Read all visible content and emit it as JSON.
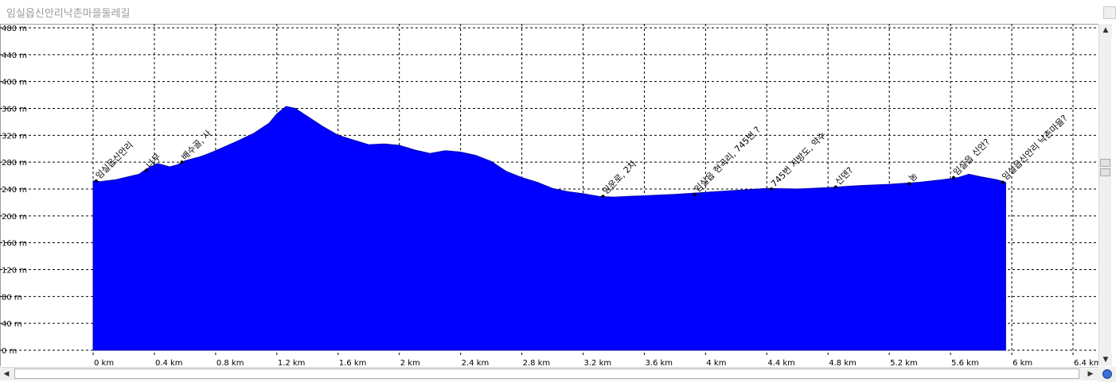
{
  "window": {
    "title": "임실읍신안리낙촌마을둘레길"
  },
  "colors": {
    "profile_fill": "#0000FF",
    "profile_stroke": "#0000B0",
    "grid": "#000000",
    "background": "#FFFFFF"
  },
  "scrollbars": {
    "up_arrow_icon": "arrow-up-icon",
    "down_arrow_icon": "arrow-down-icon",
    "left_arrow_icon": "arrow-left-icon",
    "right_arrow_icon": "arrow-right-icon"
  },
  "chart_data": {
    "type": "area",
    "title": "",
    "xlabel": "",
    "ylabel": "",
    "xlim": [
      0,
      6.4
    ],
    "ylim": [
      0,
      480
    ],
    "grid": true,
    "x_ticks": [
      "0 km",
      "0.4 km",
      "0.8 km",
      "1.2 km",
      "1.6 km",
      "2 km",
      "2.4 km",
      "2.8 km",
      "3.2 km",
      "3.6 km",
      "4 km",
      "4.4 km",
      "4.8 km",
      "5.2 km",
      "5.6 km",
      "6 km",
      "6.4 km"
    ],
    "y_ticks": [
      "0 m",
      "40 m",
      "80 m",
      "120 m",
      "160 m",
      "200 m",
      "240 m",
      "280 m",
      "320 m",
      "360 m",
      "400 m",
      "440 m",
      "480 m"
    ],
    "series": [
      {
        "x": [
          0,
          0.05,
          0.15,
          0.3,
          0.35,
          0.42,
          0.5,
          0.55,
          0.6,
          0.7,
          0.78,
          0.85,
          0.95,
          1.05,
          1.15,
          1.2,
          1.26,
          1.32,
          1.4,
          1.5,
          1.6,
          1.7,
          1.8,
          1.9,
          2.0,
          2.1,
          2.2,
          2.3,
          2.4,
          2.5,
          2.6,
          2.7,
          2.8,
          2.9,
          3.0,
          3.1,
          3.2,
          3.3,
          3.4,
          3.5,
          3.6,
          3.8,
          4.0,
          4.2,
          4.4,
          4.6,
          4.8,
          5.0,
          5.2,
          5.4,
          5.55,
          5.65,
          5.72,
          5.8,
          5.9,
          5.96
        ],
        "y": [
          252,
          251,
          254,
          262,
          270,
          278,
          273,
          276,
          282,
          288,
          295,
          302,
          312,
          323,
          338,
          352,
          363,
          360,
          348,
          333,
          320,
          313,
          306,
          307,
          305,
          298,
          293,
          297,
          295,
          290,
          281,
          266,
          257,
          250,
          241,
          236,
          233,
          229,
          228,
          229,
          230,
          232,
          235,
          238,
          241,
          240,
          242,
          245,
          247,
          250,
          254,
          257,
          262,
          258,
          254,
          250
        ]
      }
    ],
    "annotations": [
      {
        "x": 0.02,
        "y": 252,
        "text": "임실읍신안리"
      },
      {
        "x": 0.35,
        "y": 268,
        "text": "나무"
      },
      {
        "x": 0.58,
        "y": 280,
        "text": "배수골, 사"
      },
      {
        "x": 3.33,
        "y": 229,
        "text": "임운로, 2차"
      },
      {
        "x": 3.93,
        "y": 232,
        "text": "임실읍 현곡리, 745번 ?"
      },
      {
        "x": 4.43,
        "y": 240,
        "text": "745번 지방도, 약수"
      },
      {
        "x": 4.85,
        "y": 243,
        "text": "신덴?"
      },
      {
        "x": 5.33,
        "y": 248,
        "text": "농"
      },
      {
        "x": 5.62,
        "y": 257,
        "text": "임실읍 신안?"
      },
      {
        "x": 5.94,
        "y": 250,
        "text": "임실읍신안리 낙촌마을?"
      }
    ]
  }
}
